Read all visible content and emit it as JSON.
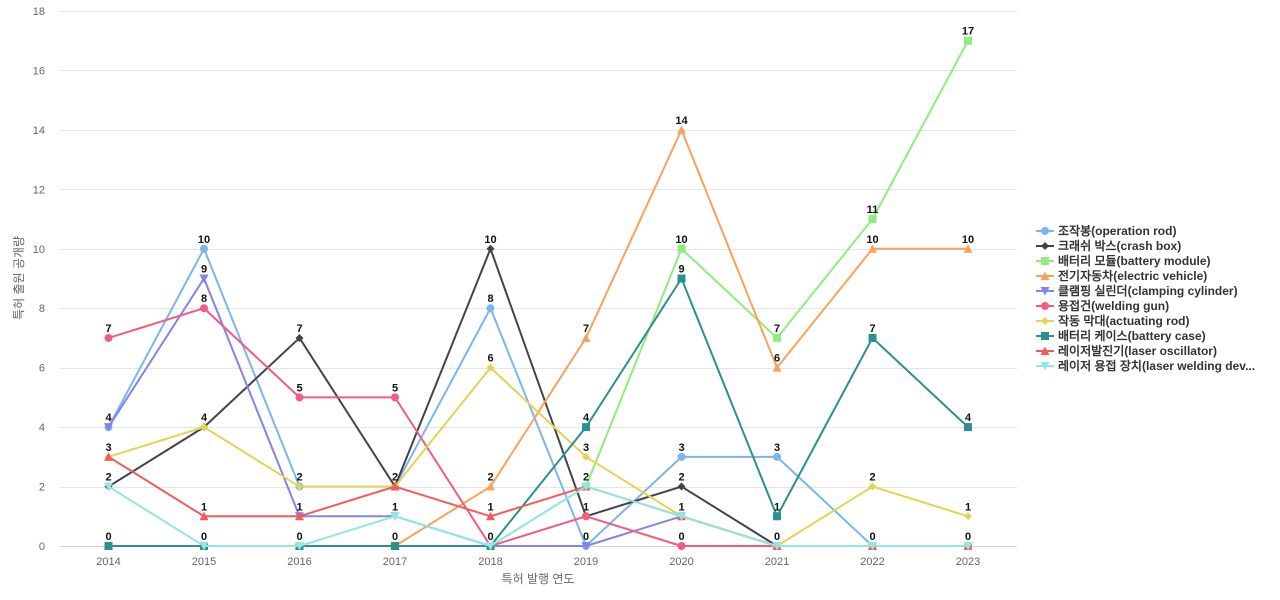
{
  "chart_data": {
    "type": "line",
    "title": "",
    "xlabel": "특허 발행 연도",
    "ylabel": "특허 출원 공개량",
    "ylim": [
      0,
      18
    ],
    "yticks": [
      0,
      2,
      4,
      6,
      8,
      10,
      12,
      14,
      16,
      18
    ],
    "categories": [
      "2014",
      "2015",
      "2016",
      "2017",
      "2018",
      "2019",
      "2020",
      "2021",
      "2022",
      "2023"
    ],
    "series": [
      {
        "name": "조작봉(operation rod)",
        "legend": "조작봉(operation rod)",
        "color": "#7cb5ec",
        "marker": "circle",
        "values": [
          4,
          10,
          2,
          2,
          8,
          0,
          3,
          3,
          0,
          0
        ],
        "labels": [
          "4",
          "10",
          "2",
          "",
          "8",
          "",
          "3",
          "3",
          "",
          ""
        ]
      },
      {
        "name": "크래쉬 박스(crash box)",
        "legend": "크래쉬 박스(crash box)",
        "color": "#434348",
        "marker": "diamond",
        "values": [
          2,
          4,
          7,
          2,
          10,
          1,
          2,
          0,
          0,
          0
        ],
        "labels": [
          "",
          "",
          "7",
          "2",
          "10",
          "1",
          "2",
          "0",
          "",
          ""
        ]
      },
      {
        "name": "배터리 모듈(battery module)",
        "legend": "배터리 모듈(battery module)",
        "color": "#90ed7d",
        "marker": "square",
        "values": [
          0,
          0,
          0,
          0,
          0,
          2,
          10,
          7,
          11,
          17
        ],
        "labels": [
          "",
          "",
          "",
          "",
          "",
          "",
          "10",
          "7",
          "11",
          "17"
        ]
      },
      {
        "name": "전기자동차(electric vehicle)",
        "legend": "전기자동차(electric vehicle)",
        "color": "#f7a35c",
        "marker": "triangle",
        "values": [
          0,
          0,
          0,
          0,
          2,
          7,
          14,
          6,
          10,
          10
        ],
        "labels": [
          "",
          "",
          "",
          "",
          "2",
          "7",
          "14",
          "6",
          "10",
          "10"
        ]
      },
      {
        "name": "클램핑 실린더(clamping cylinder)",
        "legend": "클램핑 실린더(clamping cylinder)",
        "color": "#8085e9",
        "marker": "triangle-down",
        "values": [
          4,
          9,
          1,
          1,
          0,
          0,
          1,
          0,
          0,
          0
        ],
        "labels": [
          "",
          "9",
          "",
          "",
          "",
          "0",
          "",
          "",
          "",
          ""
        ]
      },
      {
        "name": "용접건(welding gun)",
        "legend": "용접건(welding gun)",
        "color": "#f15c80",
        "marker": "circle",
        "values": [
          7,
          8,
          5,
          5,
          0,
          1,
          0,
          0,
          0,
          0
        ],
        "labels": [
          "7",
          "8",
          "5",
          "5",
          "0",
          "",
          "0",
          "",
          "0",
          "0"
        ]
      },
      {
        "name": "작동 막대(actuating rod)",
        "legend": "작동 막대(actuating rod)",
        "color": "#e4d354",
        "marker": "diamond",
        "values": [
          3,
          4,
          2,
          2,
          6,
          3,
          1,
          0,
          2,
          1
        ],
        "labels": [
          "",
          "4",
          "",
          "",
          "6",
          "3",
          "",
          "",
          "2",
          "1"
        ]
      },
      {
        "name": "배터리 케이스(battery case)",
        "legend": "배터리 케이스(battery case)",
        "color": "#2b908f",
        "marker": "square",
        "values": [
          0,
          0,
          0,
          0,
          0,
          4,
          9,
          1,
          7,
          4
        ],
        "labels": [
          "0",
          "0",
          "0",
          "0",
          "",
          "4",
          "9",
          "1",
          "7",
          "4"
        ]
      },
      {
        "name": "레이저발진기(laser oscillator)",
        "legend": "레이저발진기(laser oscillator)",
        "color": "#f45b5b",
        "marker": "triangle",
        "values": [
          3,
          1,
          1,
          2,
          1,
          2,
          1,
          0,
          0,
          0
        ],
        "labels": [
          "3",
          "1",
          "1",
          "",
          "1",
          "2",
          "1",
          "",
          "",
          ""
        ]
      },
      {
        "name": "레이저 용접 장치(laser welding device)",
        "legend": "레이저 용접 장치(laser welding dev...",
        "color": "#91e8e1",
        "marker": "triangle-down",
        "values": [
          2,
          0,
          0,
          1,
          0,
          2,
          1,
          0,
          0,
          0
        ],
        "labels": [
          "2",
          "",
          "",
          "1",
          "",
          "",
          "",
          "",
          "",
          ""
        ]
      }
    ]
  }
}
